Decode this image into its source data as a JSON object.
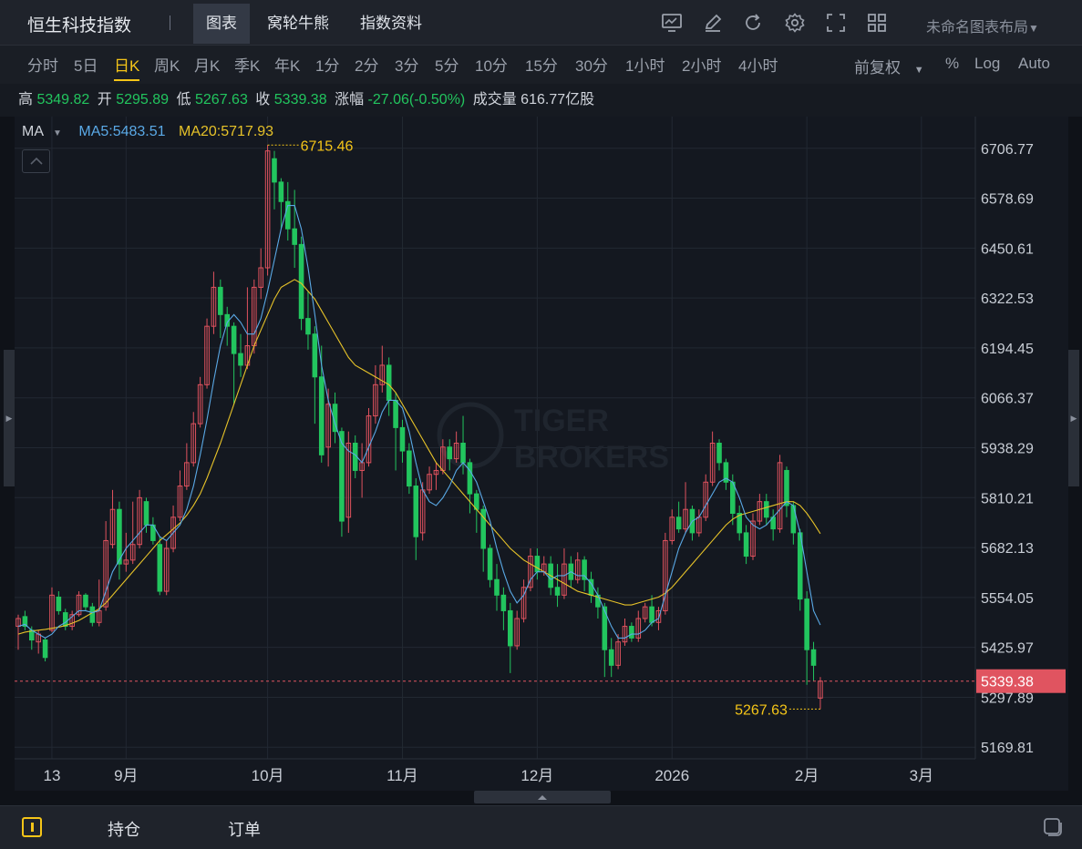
{
  "header": {
    "title": "恒生科技指数",
    "tabs": [
      {
        "label": "图表",
        "active": true
      },
      {
        "label": "窝轮牛熊",
        "active": false
      },
      {
        "label": "指数资料",
        "active": false
      }
    ],
    "layout_name": "未命名图表布局"
  },
  "periods": [
    {
      "label": "分时",
      "active": false
    },
    {
      "label": "5日",
      "active": false
    },
    {
      "label": "日K",
      "active": true
    },
    {
      "label": "周K",
      "active": false
    },
    {
      "label": "月K",
      "active": false
    },
    {
      "label": "季K",
      "active": false
    },
    {
      "label": "年K",
      "active": false
    },
    {
      "label": "1分",
      "active": false
    },
    {
      "label": "2分",
      "active": false
    },
    {
      "label": "3分",
      "active": false
    },
    {
      "label": "5分",
      "active": false
    },
    {
      "label": "10分",
      "active": false
    },
    {
      "label": "15分",
      "active": false
    },
    {
      "label": "30分",
      "active": false
    },
    {
      "label": "1小时",
      "active": false
    },
    {
      "label": "2小时",
      "active": false
    },
    {
      "label": "4小时",
      "active": false
    }
  ],
  "chart_options": {
    "adjust": "前复权",
    "percent": "%",
    "log": "Log",
    "auto": "Auto"
  },
  "quote": {
    "high_label": "高",
    "high": "5349.82",
    "open_label": "开",
    "open": "5295.89",
    "low_label": "低",
    "low": "5267.63",
    "close_label": "收",
    "close": "5339.38",
    "change_label": "涨幅",
    "change": "-27.06(-0.50%)",
    "volume_label": "成交量",
    "volume": "616.77亿股"
  },
  "indicator": {
    "name": "MA",
    "ma5_label": "MA5:5483.51",
    "ma20_label": "MA20:5717.93"
  },
  "colors": {
    "up": "#e0525e",
    "down": "#22c55e",
    "ma5": "#5aa9e6",
    "ma20": "#e6c229",
    "annotation": "#f5c518",
    "last_price_bg": "#e05460"
  },
  "watermark": "TIGER BROKERS",
  "bottom": {
    "positions": "持仓",
    "orders": "订单"
  },
  "chart_data": {
    "type": "candlestick",
    "y_ticks": [
      "6706.77",
      "6578.69",
      "6450.61",
      "6322.53",
      "6194.45",
      "6066.37",
      "5938.29",
      "5810.21",
      "5682.13",
      "5554.05",
      "5425.97",
      "5297.89",
      "5169.81"
    ],
    "y_range": [
      5140,
      6760
    ],
    "x_ticks": [
      {
        "label": "13",
        "index": 5
      },
      {
        "label": "9月",
        "index": 16
      },
      {
        "label": "10月",
        "index": 37
      },
      {
        "label": "11月",
        "index": 57
      },
      {
        "label": "12月",
        "index": 77
      },
      {
        "label": "2026",
        "index": 97
      },
      {
        "label": "2月",
        "index": 117
      },
      {
        "label": "3月",
        "index": 134
      }
    ],
    "high_marker": "6715.46",
    "low_marker": "5267.63",
    "last_price": "5339.38",
    "last_price_value": 5339.38,
    "candles": [
      [
        5480,
        5500,
        5420,
        5510
      ],
      [
        5505,
        5480,
        5470,
        5520
      ],
      [
        5470,
        5445,
        5420,
        5480
      ],
      [
        5440,
        5460,
        5410,
        5470
      ],
      [
        5445,
        5400,
        5390,
        5450
      ],
      [
        5470,
        5560,
        5465,
        5580
      ],
      [
        5555,
        5520,
        5510,
        5570
      ],
      [
        5515,
        5480,
        5470,
        5525
      ],
      [
        5480,
        5510,
        5470,
        5520
      ],
      [
        5510,
        5560,
        5505,
        5570
      ],
      [
        5560,
        5530,
        5520,
        5565
      ],
      [
        5530,
        5490,
        5480,
        5540
      ],
      [
        5490,
        5520,
        5480,
        5600
      ],
      [
        5530,
        5700,
        5520,
        5750
      ],
      [
        5690,
        5780,
        5680,
        5830
      ],
      [
        5780,
        5640,
        5600,
        5800
      ],
      [
        5640,
        5650,
        5620,
        5720
      ],
      [
        5650,
        5690,
        5640,
        5800
      ],
      [
        5690,
        5810,
        5680,
        5830
      ],
      [
        5800,
        5740,
        5720,
        5810
      ],
      [
        5740,
        5700,
        5690,
        5760
      ],
      [
        5690,
        5570,
        5560,
        5710
      ],
      [
        5570,
        5680,
        5560,
        5700
      ],
      [
        5680,
        5760,
        5670,
        5790
      ],
      [
        5760,
        5840,
        5750,
        5880
      ],
      [
        5840,
        5900,
        5830,
        5950
      ],
      [
        5900,
        6000,
        5890,
        6030
      ],
      [
        6000,
        6100,
        5990,
        6120
      ],
      [
        6100,
        6250,
        6090,
        6270
      ],
      [
        6250,
        6350,
        6230,
        6390
      ],
      [
        6350,
        6280,
        6220,
        6370
      ],
      [
        6280,
        6250,
        6200,
        6300
      ],
      [
        6250,
        6180,
        6050,
        6260
      ],
      [
        6180,
        6150,
        6120,
        6230
      ],
      [
        6150,
        6200,
        6140,
        6350
      ],
      [
        6200,
        6350,
        6180,
        6370
      ],
      [
        6350,
        6400,
        6320,
        6450
      ],
      [
        6400,
        6700,
        6380,
        6715
      ],
      [
        6680,
        6620,
        6550,
        6700
      ],
      [
        6620,
        6570,
        6500,
        6630
      ],
      [
        6570,
        6500,
        6470,
        6620
      ],
      [
        6500,
        6460,
        6400,
        6600
      ],
      [
        6460,
        6270,
        6240,
        6480
      ],
      [
        6270,
        6230,
        6190,
        6340
      ],
      [
        6230,
        6120,
        6000,
        6250
      ],
      [
        6120,
        5920,
        5900,
        6200
      ],
      [
        5940,
        6050,
        5890,
        6090
      ],
      [
        6050,
        5980,
        5950,
        6080
      ],
      [
        5980,
        5750,
        5710,
        5990
      ],
      [
        5760,
        5950,
        5720,
        5980
      ],
      [
        5950,
        5880,
        5860,
        5970
      ],
      [
        5880,
        5900,
        5810,
        5950
      ],
      [
        5900,
        6020,
        5890,
        6040
      ],
      [
        6020,
        6100,
        6000,
        6150
      ],
      [
        6100,
        6150,
        6080,
        6200
      ],
      [
        6150,
        6060,
        6020,
        6170
      ],
      [
        6060,
        5990,
        5880,
        6080
      ],
      [
        5990,
        5930,
        5900,
        6010
      ],
      [
        5930,
        5840,
        5820,
        5950
      ],
      [
        5840,
        5710,
        5650,
        5860
      ],
      [
        5720,
        5830,
        5700,
        5850
      ],
      [
        5830,
        5870,
        5820,
        5890
      ],
      [
        5870,
        5880,
        5830,
        5900
      ],
      [
        5880,
        5940,
        5870,
        5960
      ],
      [
        5940,
        5910,
        5880,
        5960
      ],
      [
        5910,
        5950,
        5900,
        5980
      ],
      [
        5950,
        5900,
        5870,
        6020
      ],
      [
        5900,
        5820,
        5770,
        5910
      ],
      [
        5820,
        5780,
        5720,
        5830
      ],
      [
        5780,
        5680,
        5620,
        5790
      ],
      [
        5680,
        5600,
        5580,
        5690
      ],
      [
        5600,
        5560,
        5520,
        5640
      ],
      [
        5560,
        5520,
        5470,
        5580
      ],
      [
        5520,
        5430,
        5360,
        5540
      ],
      [
        5430,
        5500,
        5420,
        5520
      ],
      [
        5500,
        5580,
        5490,
        5600
      ],
      [
        5580,
        5660,
        5570,
        5680
      ],
      [
        5660,
        5620,
        5600,
        5680
      ],
      [
        5620,
        5640,
        5610,
        5660
      ],
      [
        5640,
        5580,
        5560,
        5660
      ],
      [
        5580,
        5560,
        5530,
        5640
      ],
      [
        5560,
        5640,
        5550,
        5680
      ],
      [
        5640,
        5600,
        5580,
        5660
      ],
      [
        5600,
        5650,
        5590,
        5670
      ],
      [
        5650,
        5600,
        5570,
        5660
      ],
      [
        5600,
        5560,
        5540,
        5620
      ],
      [
        5560,
        5530,
        5500,
        5580
      ],
      [
        5530,
        5420,
        5350,
        5540
      ],
      [
        5420,
        5380,
        5350,
        5450
      ],
      [
        5380,
        5440,
        5370,
        5460
      ],
      [
        5440,
        5480,
        5430,
        5500
      ],
      [
        5480,
        5450,
        5440,
        5490
      ],
      [
        5450,
        5500,
        5440,
        5520
      ],
      [
        5500,
        5530,
        5490,
        5540
      ],
      [
        5530,
        5490,
        5480,
        5560
      ],
      [
        5490,
        5520,
        5470,
        5530
      ],
      [
        5520,
        5700,
        5510,
        5720
      ],
      [
        5700,
        5760,
        5690,
        5780
      ],
      [
        5760,
        5730,
        5720,
        5800
      ],
      [
        5730,
        5780,
        5720,
        5850
      ],
      [
        5780,
        5720,
        5700,
        5790
      ],
      [
        5720,
        5760,
        5710,
        5780
      ],
      [
        5760,
        5850,
        5750,
        5870
      ],
      [
        5850,
        5950,
        5840,
        5980
      ],
      [
        5950,
        5900,
        5880,
        5960
      ],
      [
        5900,
        5850,
        5830,
        5910
      ],
      [
        5850,
        5770,
        5740,
        5870
      ],
      [
        5770,
        5720,
        5700,
        5790
      ],
      [
        5720,
        5660,
        5640,
        5740
      ],
      [
        5660,
        5750,
        5650,
        5770
      ],
      [
        5750,
        5800,
        5740,
        5820
      ],
      [
        5800,
        5760,
        5740,
        5820
      ],
      [
        5760,
        5730,
        5700,
        5780
      ],
      [
        5730,
        5900,
        5720,
        5920
      ],
      [
        5880,
        5790,
        5760,
        5890
      ],
      [
        5790,
        5720,
        5690,
        5800
      ],
      [
        5720,
        5550,
        5520,
        5730
      ],
      [
        5550,
        5420,
        5330,
        5570
      ],
      [
        5420,
        5380,
        5340,
        5440
      ],
      [
        5295.89,
        5339.38,
        5267.63,
        5349.82
      ]
    ],
    "ma5": [
      5480,
      5485,
      5470,
      5460,
      5450,
      5460,
      5480,
      5490,
      5505,
      5520,
      5520,
      5515,
      5520,
      5570,
      5620,
      5650,
      5680,
      5700,
      5720,
      5740,
      5740,
      5710,
      5700,
      5720,
      5740,
      5780,
      5840,
      5920,
      6010,
      6110,
      6200,
      6260,
      6280,
      6260,
      6230,
      6230,
      6270,
      6340,
      6420,
      6500,
      6560,
      6560,
      6500,
      6400,
      6280,
      6150,
      6060,
      6000,
      5950,
      5930,
      5920,
      5900,
      5940,
      5980,
      6030,
      6060,
      6060,
      6040,
      5980,
      5900,
      5830,
      5800,
      5790,
      5810,
      5840,
      5880,
      5900,
      5880,
      5850,
      5800,
      5750,
      5680,
      5620,
      5570,
      5540,
      5560,
      5600,
      5620,
      5620,
      5600,
      5610,
      5610,
      5620,
      5610,
      5610,
      5590,
      5560,
      5520,
      5480,
      5450,
      5450,
      5460,
      5460,
      5470,
      5490,
      5500,
      5560,
      5620,
      5680,
      5720,
      5750,
      5760,
      5790,
      5820,
      5850,
      5860,
      5850,
      5810,
      5760,
      5740,
      5730,
      5740,
      5760,
      5780,
      5800,
      5790,
      5720,
      5620,
      5520,
      5483.51
    ],
    "ma20": [
      5460,
      5465,
      5468,
      5470,
      5472,
      5475,
      5478,
      5482,
      5488,
      5495,
      5505,
      5515,
      5525,
      5540,
      5560,
      5580,
      5600,
      5620,
      5640,
      5660,
      5680,
      5700,
      5715,
      5730,
      5745,
      5765,
      5790,
      5820,
      5860,
      5905,
      5950,
      6000,
      6050,
      6100,
      6150,
      6200,
      6240,
      6280,
      6320,
      6350,
      6360,
      6370,
      6360,
      6340,
      6320,
      6290,
      6260,
      6230,
      6200,
      6170,
      6150,
      6140,
      6130,
      6120,
      6110,
      6100,
      6080,
      6050,
      6020,
      5990,
      5960,
      5930,
      5900,
      5880,
      5860,
      5840,
      5820,
      5800,
      5780,
      5760,
      5740,
      5720,
      5700,
      5680,
      5665,
      5650,
      5640,
      5630,
      5620,
      5610,
      5600,
      5590,
      5580,
      5570,
      5565,
      5560,
      5555,
      5550,
      5545,
      5540,
      5535,
      5535,
      5540,
      5545,
      5550,
      5555,
      5565,
      5580,
      5600,
      5620,
      5640,
      5660,
      5680,
      5700,
      5720,
      5740,
      5755,
      5765,
      5770,
      5775,
      5780,
      5785,
      5790,
      5795,
      5800,
      5800,
      5790,
      5770,
      5745,
      5717.93
    ]
  }
}
